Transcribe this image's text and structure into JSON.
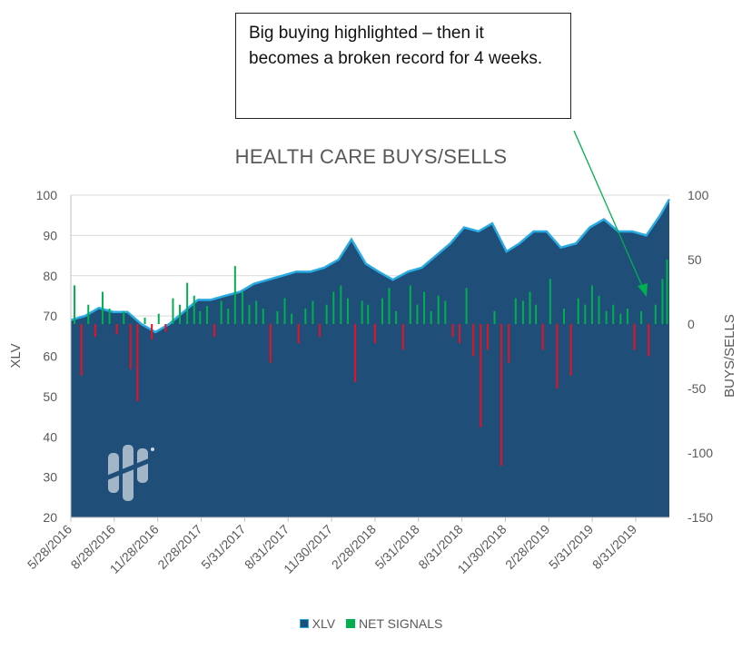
{
  "annotation": {
    "text": "Big buying highlighted – then it becomes a broken record for 4 weeks."
  },
  "chart_data": {
    "type": "area",
    "title": "HEALTH CARE BUYS/SELLS",
    "ylabel": "XLV",
    "y2label": "BUYS/SELLS",
    "ylim": [
      20,
      100
    ],
    "y2lim": [
      -150,
      100
    ],
    "yticks": [
      20,
      30,
      40,
      50,
      60,
      70,
      80,
      90,
      100
    ],
    "y2ticks": [
      -150,
      -100,
      -50,
      0,
      50,
      100
    ],
    "x_tick_labels": [
      "5/28/2016",
      "8/28/2016",
      "11/28/2016",
      "2/28/2017",
      "5/31/2017",
      "8/31/2017",
      "11/30/2017",
      "2/28/2018",
      "5/31/2018",
      "8/31/2018",
      "11/30/2018",
      "2/28/2019",
      "5/31/2019",
      "8/31/2019"
    ],
    "legend": [
      "XLV",
      "NET SIGNALS"
    ],
    "legend_position": "bottom",
    "grid": true,
    "colors": {
      "xlv_fill": "#1f4e79",
      "xlv_line": "#29abe2",
      "buys": "#00b050",
      "sells": "#e81123",
      "arrow": "#00b050"
    },
    "series": [
      {
        "name": "XLV",
        "axis": "left",
        "x": [
          "2016-05-28",
          "2016-06-28",
          "2016-07-28",
          "2016-08-28",
          "2016-09-28",
          "2016-10-28",
          "2016-11-28",
          "2016-12-28",
          "2017-01-28",
          "2017-02-28",
          "2017-03-28",
          "2017-04-28",
          "2017-05-31",
          "2017-06-30",
          "2017-07-31",
          "2017-08-31",
          "2017-09-30",
          "2017-10-31",
          "2017-11-30",
          "2017-12-31",
          "2018-01-28",
          "2018-02-28",
          "2018-03-28",
          "2018-04-28",
          "2018-05-31",
          "2018-06-30",
          "2018-07-31",
          "2018-08-31",
          "2018-09-30",
          "2018-10-31",
          "2018-11-30",
          "2018-12-31",
          "2019-01-28",
          "2019-02-28",
          "2019-03-28",
          "2019-04-28",
          "2019-05-31",
          "2019-06-30",
          "2019-07-31",
          "2019-08-31",
          "2019-09-30",
          "2019-10-31",
          "2019-11-30",
          "2019-12-20"
        ],
        "values": [
          69,
          70,
          72,
          71,
          71,
          68,
          66,
          68,
          71,
          74,
          74,
          75,
          76,
          78,
          79,
          80,
          81,
          81,
          82,
          84,
          89,
          83,
          81,
          79,
          81,
          82,
          85,
          88,
          92,
          91,
          93,
          86,
          88,
          91,
          91,
          87,
          88,
          92,
          94,
          91,
          91,
          90,
          95,
          99
        ]
      },
      {
        "name": "NET SIGNALS",
        "axis": "right",
        "x": [
          "2016-06-05",
          "2016-06-20",
          "2016-07-05",
          "2016-07-20",
          "2016-08-05",
          "2016-08-20",
          "2016-09-05",
          "2016-09-20",
          "2016-10-05",
          "2016-10-20",
          "2016-11-05",
          "2016-11-20",
          "2016-12-05",
          "2016-12-20",
          "2017-01-05",
          "2017-01-20",
          "2017-02-05",
          "2017-02-20",
          "2017-03-05",
          "2017-03-20",
          "2017-04-05",
          "2017-04-20",
          "2017-05-05",
          "2017-05-20",
          "2017-06-05",
          "2017-06-20",
          "2017-07-05",
          "2017-07-20",
          "2017-08-05",
          "2017-08-20",
          "2017-09-05",
          "2017-09-20",
          "2017-10-05",
          "2017-10-20",
          "2017-11-05",
          "2017-11-20",
          "2017-12-05",
          "2017-12-20",
          "2018-01-05",
          "2018-01-20",
          "2018-02-05",
          "2018-02-20",
          "2018-03-05",
          "2018-03-20",
          "2018-04-05",
          "2018-04-20",
          "2018-05-05",
          "2018-05-20",
          "2018-06-05",
          "2018-06-20",
          "2018-07-05",
          "2018-07-20",
          "2018-08-05",
          "2018-08-20",
          "2018-09-05",
          "2018-09-20",
          "2018-10-05",
          "2018-10-20",
          "2018-11-05",
          "2018-11-20",
          "2018-12-05",
          "2018-12-20",
          "2019-01-05",
          "2019-01-20",
          "2019-02-05",
          "2019-02-20",
          "2019-03-05",
          "2019-03-20",
          "2019-04-05",
          "2019-04-20",
          "2019-05-05",
          "2019-05-20",
          "2019-06-05",
          "2019-06-20",
          "2019-07-05",
          "2019-07-20",
          "2019-08-05",
          "2019-08-20",
          "2019-09-05",
          "2019-09-20",
          "2019-10-05",
          "2019-10-20",
          "2019-11-05",
          "2019-11-20",
          "2019-12-05",
          "2019-12-15"
        ],
        "values": [
          30,
          -40,
          15,
          -10,
          25,
          12,
          -8,
          10,
          -35,
          -60,
          5,
          -12,
          8,
          -6,
          20,
          15,
          32,
          22,
          10,
          14,
          -10,
          18,
          12,
          45,
          25,
          15,
          18,
          12,
          -30,
          10,
          20,
          8,
          -15,
          12,
          18,
          -10,
          15,
          25,
          30,
          20,
          -45,
          18,
          15,
          -15,
          20,
          28,
          10,
          -20,
          30,
          15,
          25,
          10,
          22,
          18,
          -10,
          -15,
          28,
          -25,
          -80,
          -20,
          10,
          -110,
          -30,
          20,
          18,
          25,
          15,
          -20,
          35,
          -50,
          12,
          -40,
          20,
          15,
          30,
          22,
          10,
          15,
          8,
          12,
          -20,
          10,
          -25,
          15,
          35,
          50
        ]
      }
    ]
  }
}
